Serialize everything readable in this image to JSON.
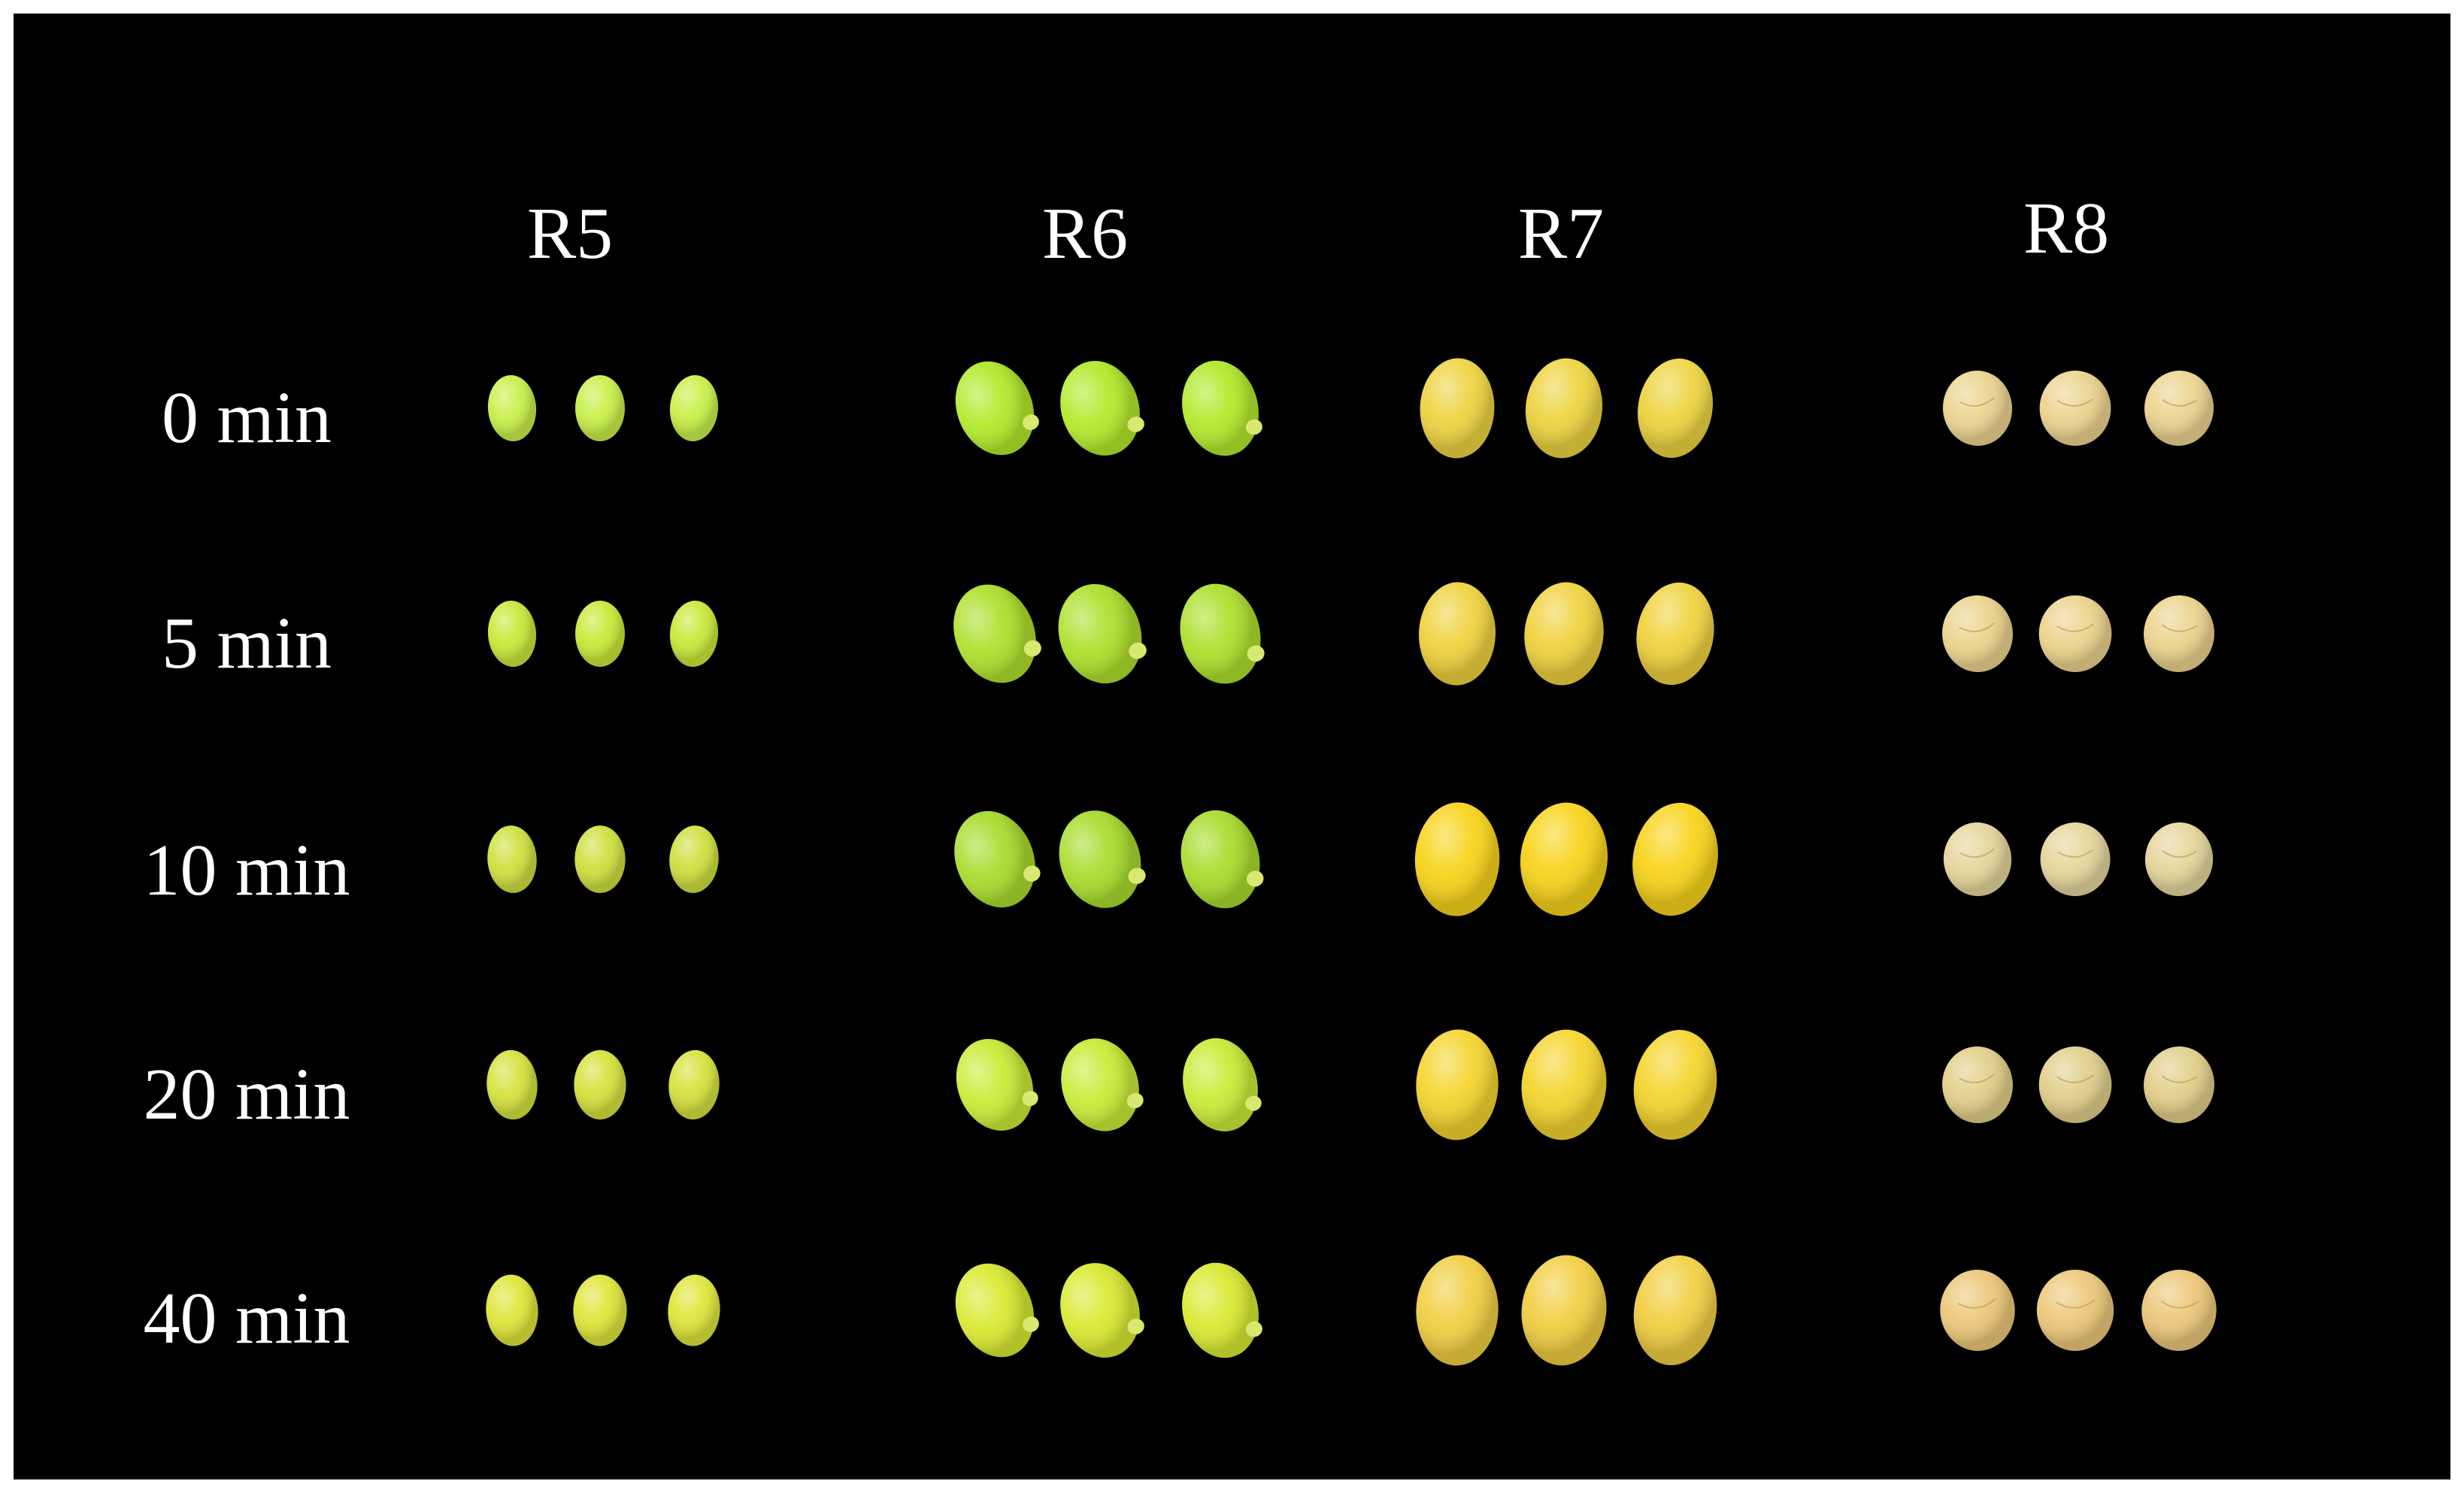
{
  "stages": [
    "R5",
    "R6",
    "R7",
    "R8"
  ],
  "times": [
    "0 min",
    "5 min",
    "10 min",
    "20 min",
    "40 min"
  ],
  "colors": {
    "background": "#000000",
    "label": "#ffffff",
    "R5": [
      "#c8f04a",
      "#c9e93a",
      "#cfe040",
      "#d6e23e",
      "#dfe63a"
    ],
    "R6": [
      "#b2ea2c",
      "#aee02c",
      "#a9dc2e",
      "#c9ec38",
      "#d9ea32"
    ],
    "R7": [
      "#eed442",
      "#f0d340",
      "#f8d41c",
      "#f5d530",
      "#f2cf44"
    ],
    "R8": [
      "#ecd490",
      "#ecd48e",
      "#e6d69c",
      "#e2cf8a",
      "#ecc87a"
    ]
  }
}
